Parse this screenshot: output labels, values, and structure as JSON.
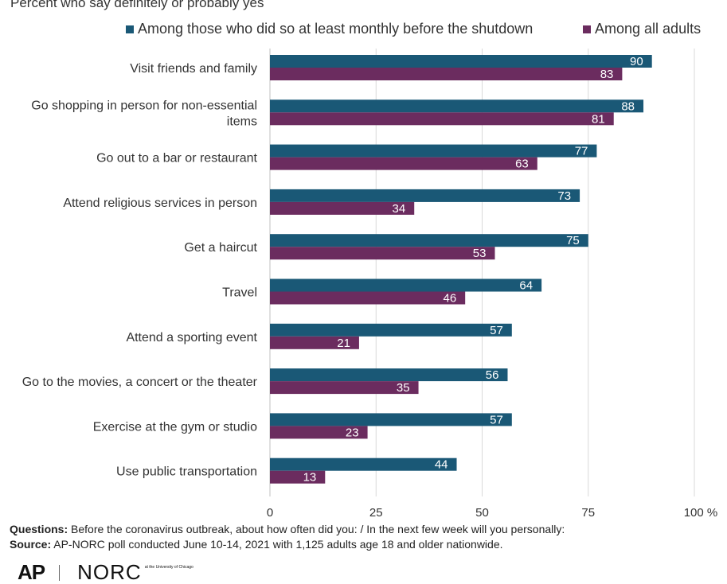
{
  "subtitle": "Percent who say definitely or probably yes",
  "legend": [
    {
      "label": "Among those who did so at least monthly before the shutdown",
      "color": "#1a5876"
    },
    {
      "label": "Among all adults",
      "color": "#6b2c5f"
    }
  ],
  "chart_data": {
    "type": "bar",
    "orientation": "horizontal",
    "categories": [
      [
        "Visit friends and family"
      ],
      [
        "Go shopping in person for non-essential",
        "items"
      ],
      [
        "Go out to a bar or restaurant"
      ],
      [
        "Attend religious services in person"
      ],
      [
        "Get a haircut"
      ],
      [
        "Travel"
      ],
      [
        "Attend a sporting event"
      ],
      [
        "Go to the movies, a concert or the theater"
      ],
      [
        "Exercise at the gym or studio"
      ],
      [
        "Use public transportation"
      ]
    ],
    "series": [
      {
        "name": "Among those who did so at least monthly before the shutdown",
        "color": "#1a5876",
        "values": [
          90,
          88,
          77,
          73,
          75,
          64,
          57,
          56,
          57,
          44
        ]
      },
      {
        "name": "Among all adults",
        "color": "#6b2c5f",
        "values": [
          83,
          81,
          63,
          34,
          53,
          46,
          21,
          35,
          23,
          13
        ]
      }
    ],
    "xlim": [
      0,
      100
    ],
    "xticks": [
      "0",
      "25",
      "50",
      "75",
      "100 %"
    ],
    "xtick_values": [
      0,
      25,
      50,
      75,
      100
    ],
    "grid": true
  },
  "footer": {
    "questions_label": "Questions:",
    "questions_text": "Before the coronavirus outbreak, about how often did you: / In the next few week will you personally:",
    "source_label": "Source:",
    "source_text": "AP-NORC poll conducted June 10-14, 2021 with 1,125 adults age 18 and older nationwide."
  },
  "logos": {
    "ap": "AP",
    "norc": "NORC",
    "norc_small": "at the University of Chicago"
  }
}
